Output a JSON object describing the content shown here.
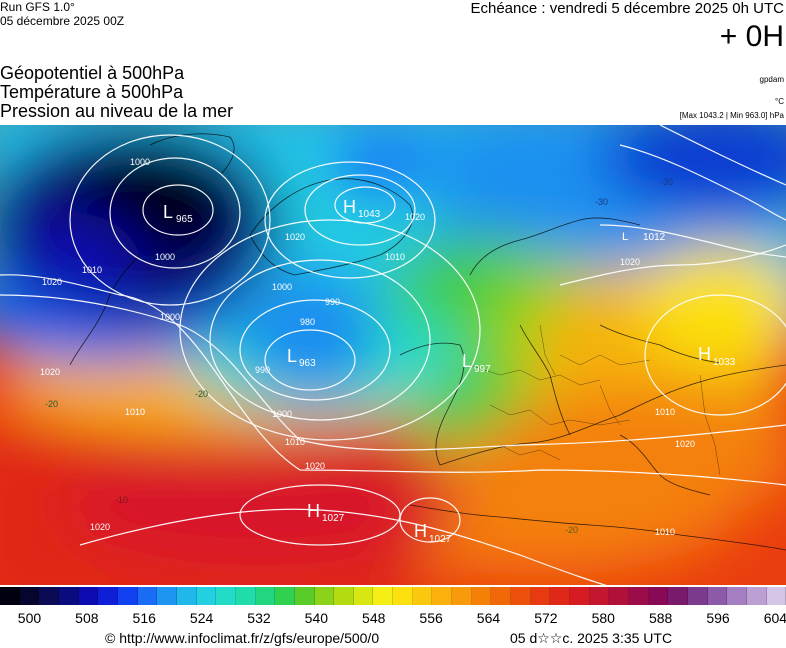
{
  "header": {
    "run": "Run GFS 1.0°",
    "run_date": "05 décembre 2025 00Z",
    "echeance": "Echéance : vendredi 5 décembre 2025 0h UTC",
    "lead": "+ 0H"
  },
  "titles": {
    "line1": "Géopotentiel à 500hPa",
    "line2": "Température à 500hPa",
    "line3": "Pression au niveau de la mer"
  },
  "units": {
    "geopot": "gpdam",
    "temp": "°C",
    "range": "[Max 1043.2 | Min 963.0] hPa"
  },
  "pressure_centers": [
    {
      "type": "L",
      "value": "965"
    },
    {
      "type": "H",
      "value": "1043"
    },
    {
      "type": "L",
      "value": "963"
    },
    {
      "type": "L",
      "value": "997"
    },
    {
      "type": "H",
      "value": "1033"
    },
    {
      "type": "H",
      "value": "1027"
    },
    {
      "type": "H",
      "value": "1027"
    },
    {
      "type": "L",
      "value": "1012"
    }
  ],
  "isobar_labels": [
    "1000",
    "1000",
    "1010",
    "1020",
    "1020",
    "1010",
    "1000",
    "990",
    "980",
    "990",
    "1000",
    "1010",
    "1020",
    "1020",
    "1010",
    "1020",
    "1020",
    "1010",
    "1020",
    "1000",
    "1010",
    "1020"
  ],
  "isotherm_labels": [
    "-20",
    "-20",
    "-30",
    "-30",
    "-20",
    "-10"
  ],
  "scale": {
    "colors": [
      "#000010",
      "#05052e",
      "#0a0a55",
      "#0b0b80",
      "#0c0cb0",
      "#0f1fd8",
      "#1040f0",
      "#1a6cf5",
      "#1e95f0",
      "#20b8ea",
      "#22d0e0",
      "#22dcc8",
      "#20dca8",
      "#22d680",
      "#30d050",
      "#5acc2a",
      "#8cd21a",
      "#b4da10",
      "#d8e612",
      "#f4ee14",
      "#fce010",
      "#fcc80e",
      "#fcb00c",
      "#f89a0a",
      "#f48008",
      "#f06808",
      "#ec500a",
      "#e83a10",
      "#e02818",
      "#d41c22",
      "#c4162e",
      "#b0103a",
      "#9c0c48",
      "#880a56",
      "#7a1a6c",
      "#7c3a8c",
      "#8c5aa8",
      "#a47ec0",
      "#bca0d4",
      "#d4c4e6"
    ],
    "ticks": [
      "500",
      "508",
      "516",
      "524",
      "532",
      "540",
      "548",
      "556",
      "564",
      "572",
      "580",
      "588",
      "596",
      "604"
    ]
  },
  "footer": {
    "copyright": "© http://www.infoclimat.fr/z/gfs/europe/500/0",
    "stamp": "05 d☆☆c. 2025  3:35 UTC"
  }
}
